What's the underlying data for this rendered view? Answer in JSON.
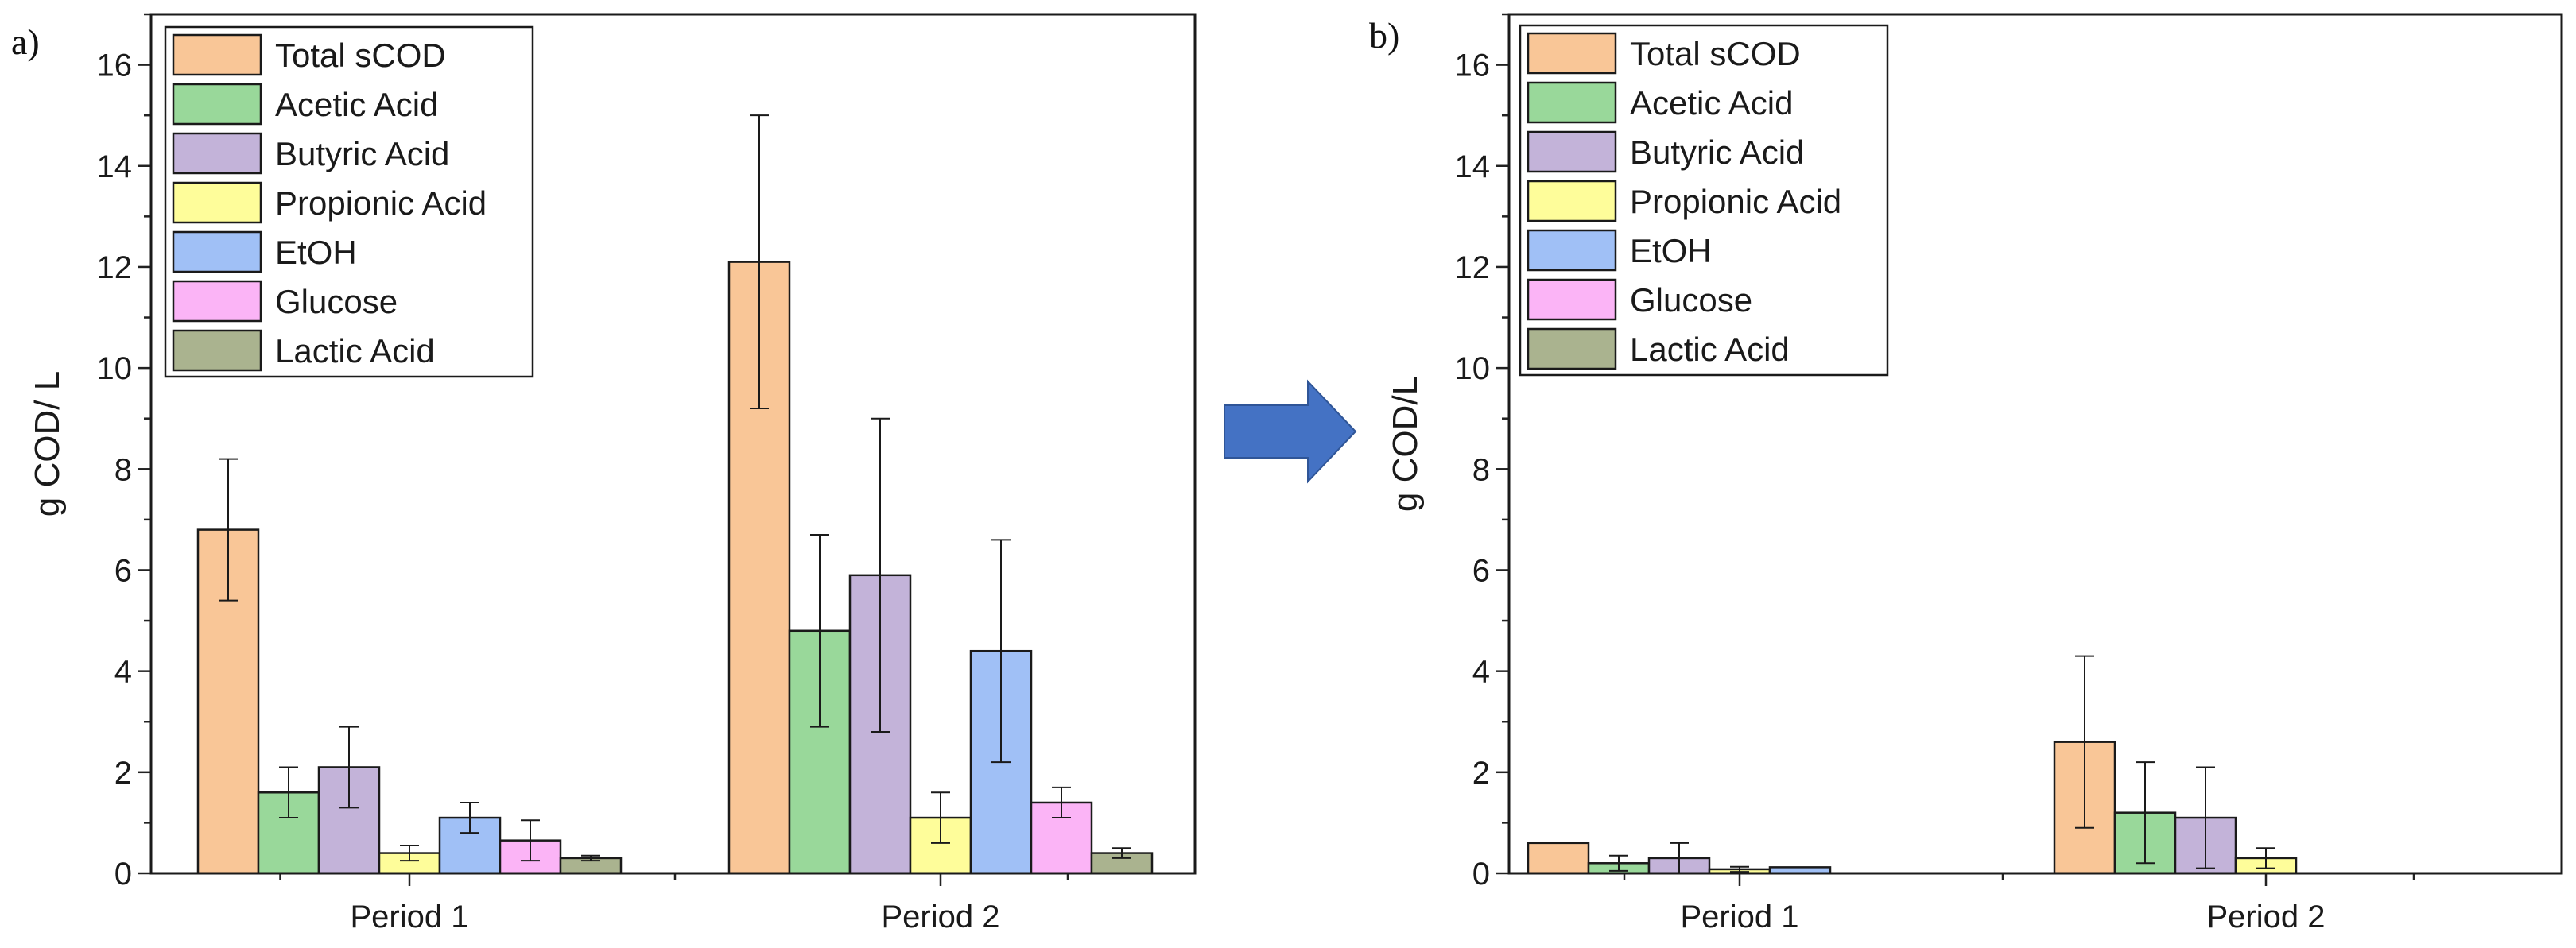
{
  "chart_data": [
    {
      "type": "bar",
      "panel": "a)",
      "ylabel": "g COD/ L",
      "xlabel": "",
      "ylim": [
        0,
        17
      ],
      "yticks": [
        0,
        2,
        4,
        6,
        8,
        10,
        12,
        14,
        16
      ],
      "categories": [
        "Period 1",
        "Period 2"
      ],
      "legend_position": "top-left",
      "series": [
        {
          "name": "Total sCOD",
          "color": "#f9c697",
          "values": [
            6.8,
            12.1
          ],
          "errors": [
            1.4,
            2.9
          ]
        },
        {
          "name": "Acetic Acid",
          "color": "#99d89a",
          "values": [
            1.6,
            4.8
          ],
          "errors": [
            0.5,
            1.9
          ]
        },
        {
          "name": "Butyric Acid",
          "color": "#c3b3d9",
          "values": [
            2.1,
            5.9
          ],
          "errors": [
            0.8,
            3.1
          ]
        },
        {
          "name": "Propionic Acid",
          "color": "#fefd9a",
          "values": [
            0.4,
            1.1
          ],
          "errors": [
            0.15,
            0.5
          ]
        },
        {
          "name": "EtOH",
          "color": "#a0c0f6",
          "values": [
            1.1,
            4.4
          ],
          "errors": [
            0.3,
            2.2
          ]
        },
        {
          "name": "Glucose",
          "color": "#fbb4f6",
          "values": [
            0.65,
            1.4
          ],
          "errors": [
            0.4,
            0.3
          ]
        },
        {
          "name": "Lactic Acid",
          "color": "#aab38f",
          "values": [
            0.3,
            0.4
          ],
          "errors": [
            0.05,
            0.1
          ]
        }
      ]
    },
    {
      "type": "bar",
      "panel": "b)",
      "ylabel": "g COD/L",
      "xlabel": "",
      "ylim": [
        0,
        17
      ],
      "yticks": [
        0,
        2,
        4,
        6,
        8,
        10,
        12,
        14,
        16
      ],
      "categories": [
        "Period 1",
        "Period 2"
      ],
      "legend_position": "top-left",
      "series": [
        {
          "name": "Total sCOD",
          "color": "#f9c697",
          "values": [
            0.6,
            2.6
          ],
          "errors": [
            0,
            1.7
          ]
        },
        {
          "name": "Acetic Acid",
          "color": "#99d89a",
          "values": [
            0.2,
            1.2
          ],
          "errors": [
            0.15,
            1.0
          ]
        },
        {
          "name": "Butyric Acid",
          "color": "#c3b3d9",
          "values": [
            0.3,
            1.1
          ],
          "errors": [
            0.3,
            1.0
          ]
        },
        {
          "name": "Propionic Acid",
          "color": "#fefd9a",
          "values": [
            0.08,
            0.3
          ],
          "errors": [
            0.05,
            0.2
          ]
        },
        {
          "name": "EtOH",
          "color": "#a0c0f6",
          "values": [
            0.12,
            0
          ],
          "errors": [
            0,
            0
          ]
        },
        {
          "name": "Glucose",
          "color": "#fbb4f6",
          "values": [
            0,
            0
          ],
          "errors": [
            0,
            0
          ]
        },
        {
          "name": "Lactic Acid",
          "color": "#aab38f",
          "values": [
            0,
            0
          ],
          "errors": [
            0,
            0
          ]
        }
      ]
    }
  ],
  "arrow": {
    "color": "#4472c4",
    "icon": "right-arrow-icon"
  }
}
